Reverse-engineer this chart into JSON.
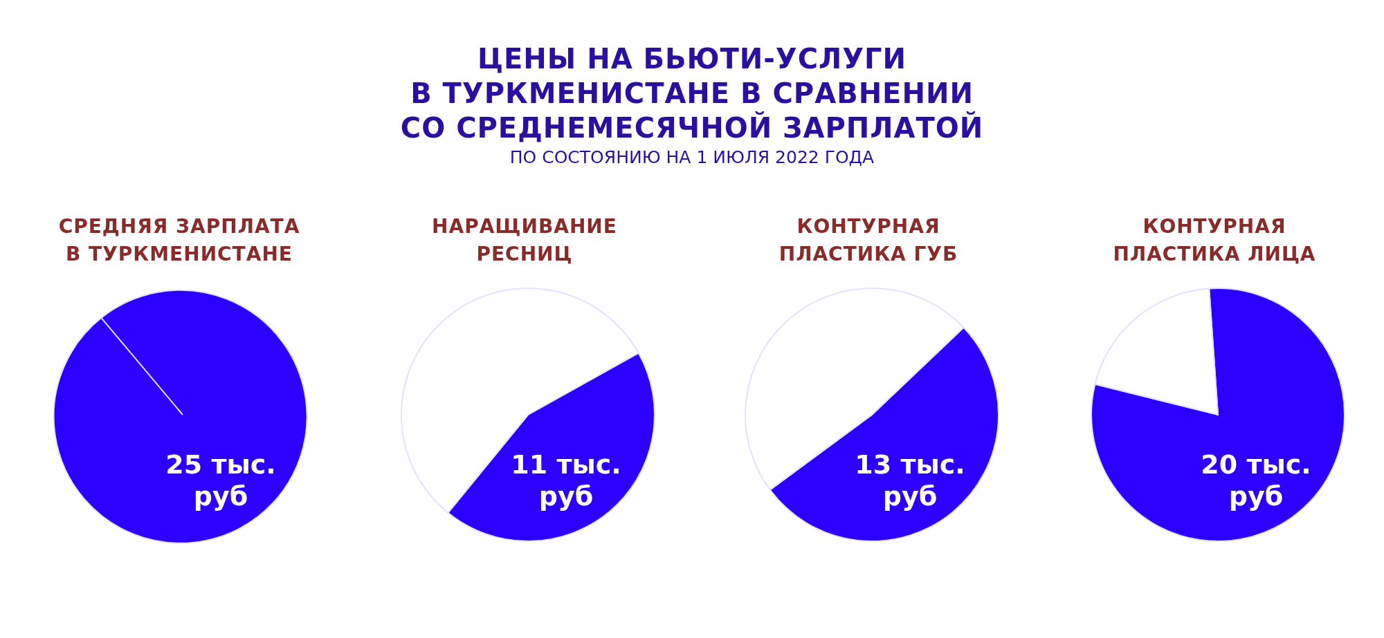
{
  "chart_data": [
    {
      "type": "pie",
      "annotations": [
        "ЦЕНЫ НА БЬЮТИ-УСЛУГИ\nВ ТУРКМЕНИСТАНЕ В СРАВНЕНИИ\nСО СРЕДНЕМЕСЯЧНОЙ ЗАРПЛАТОЙ",
        "ПО СОСТОЯНИЮ НА 1 ИЮЛЯ 2022 ГОДА"
      ],
      "title": "СРЕДНЯЯ ЗАРПЛАТА\nВ ТУРКМЕНИСТАНЕ",
      "categories": [
        null
      ],
      "values": [
        25
      ],
      "colors": [
        "#2b00ff"
      ],
      "value_labels": [
        "25 тыс.\nруб"
      ]
    },
    {
      "type": "pie",
      "title": "НАРАЩИВАНИЕ\nРЕСНИЦ",
      "categories": [
        null,
        null
      ],
      "values": [
        11,
        14
      ],
      "colors": [
        "#2b00ff",
        "#ffffff"
      ],
      "value_labels": [
        "11 тыс.\nруб",
        null
      ]
    },
    {
      "type": "pie",
      "title": "КОНТУРНАЯ\nПЛАСТИКА ГУБ",
      "categories": [
        null,
        null
      ],
      "values": [
        13,
        12
      ],
      "colors": [
        "#2b00ff",
        "#ffffff"
      ],
      "value_labels": [
        "13 тыс.\nруб",
        null
      ]
    },
    {
      "type": "pie",
      "title": "КОНТУРНАЯ\nПЛАСТИКА ЛИЦА",
      "categories": [
        null,
        null
      ],
      "values": [
        20,
        5
      ],
      "colors": [
        "#2b00ff",
        "#ffffff"
      ],
      "value_labels": [
        "20 тыс.\nруб",
        null
      ]
    }
  ]
}
